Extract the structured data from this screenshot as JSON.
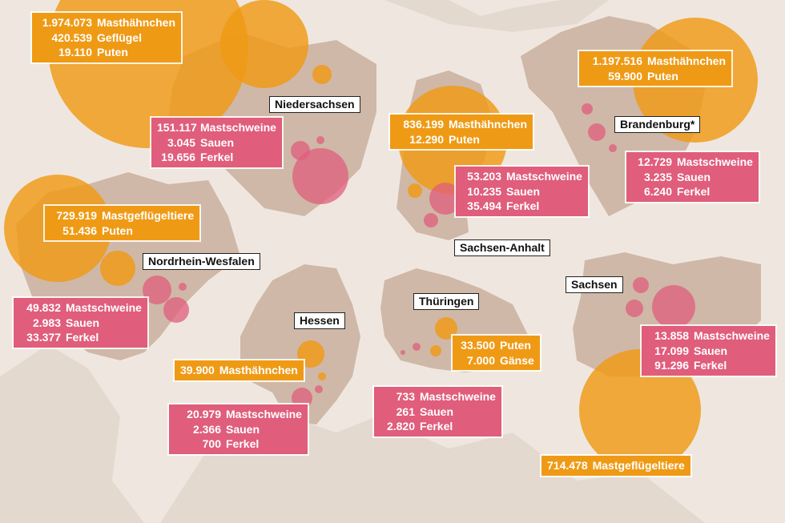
{
  "colors": {
    "background": "#efe7df",
    "neighbour_land": "#e4d9cf",
    "state_fill": "#cfb8a7",
    "poultry_orange": "#ef9a15",
    "pig_pink": "#e05d7c"
  },
  "states": {
    "niedersachsen": {
      "name": "Niedersachsen",
      "poultry": [
        {
          "value": "1.974.073",
          "label": "Masthähnchen"
        },
        {
          "value": "420.539",
          "label": "Geflügel"
        },
        {
          "value": "19.110",
          "label": "Puten"
        }
      ],
      "pigs": [
        {
          "value": "151.117",
          "label": "Mastschweine"
        },
        {
          "value": "3.045",
          "label": "Sauen"
        },
        {
          "value": "19.656",
          "label": "Ferkel"
        }
      ]
    },
    "sachsen_anhalt": {
      "name": "Sachsen-Anhalt",
      "poultry": [
        {
          "value": "836.199",
          "label": "Masthähnchen"
        },
        {
          "value": "12.290",
          "label": "Puten"
        }
      ],
      "pigs": [
        {
          "value": "53.203",
          "label": "Mastschweine"
        },
        {
          "value": "10.235",
          "label": "Sauen"
        },
        {
          "value": "35.494",
          "label": "Ferkel"
        }
      ]
    },
    "brandenburg": {
      "name": "Brandenburg*",
      "poultry": [
        {
          "value": "1.197.516",
          "label": "Masthähnchen"
        },
        {
          "value": "59.900",
          "label": "Puten"
        }
      ],
      "pigs": [
        {
          "value": "12.729",
          "label": "Mastschweine"
        },
        {
          "value": "3.235",
          "label": "Sauen"
        },
        {
          "value": "6.240",
          "label": "Ferkel"
        }
      ]
    },
    "nrw": {
      "name": "Nordrhein-Wesfalen",
      "poultry": [
        {
          "value": "729.919",
          "label": "Mastgeflügeltiere"
        },
        {
          "value": "51.436",
          "label": "Puten"
        }
      ],
      "pigs": [
        {
          "value": "49.832",
          "label": "Mastschweine"
        },
        {
          "value": "2.983",
          "label": "Sauen"
        },
        {
          "value": "33.377",
          "label": "Ferkel"
        }
      ]
    },
    "hessen": {
      "name": "Hessen",
      "poultry": [
        {
          "value": "39.900",
          "label": "Masthähnchen"
        }
      ],
      "pigs": [
        {
          "value": "20.979",
          "label": "Mastschweine"
        },
        {
          "value": "2.366",
          "label": "Sauen"
        },
        {
          "value": "700",
          "label": "Ferkel"
        }
      ]
    },
    "thueringen": {
      "name": "Thüringen",
      "poultry": [
        {
          "value": "33.500",
          "label": "Puten"
        },
        {
          "value": "7.000",
          "label": "Gänse"
        }
      ],
      "pigs": [
        {
          "value": "733",
          "label": "Mastschweine"
        },
        {
          "value": "261",
          "label": "Sauen"
        },
        {
          "value": "2.820",
          "label": "Ferkel"
        }
      ]
    },
    "sachsen": {
      "name": "Sachsen",
      "poultry": [
        {
          "value": "714.478",
          "label": "Mastgeflügeltiere"
        }
      ],
      "pigs": [
        {
          "value": "13.858",
          "label": "Mastschweine"
        },
        {
          "value": "17.099",
          "label": "Sauen"
        },
        {
          "value": "91.296",
          "label": "Ferkel"
        }
      ]
    }
  }
}
